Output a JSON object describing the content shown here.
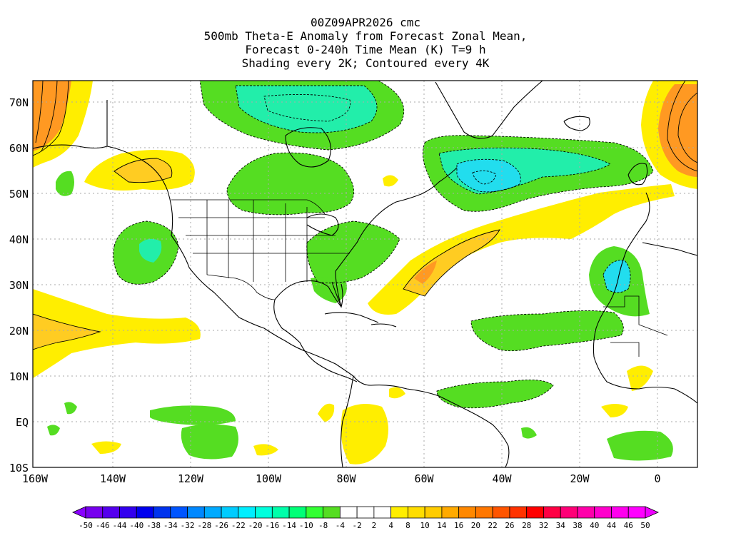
{
  "title": {
    "line1": "00Z09APR2026 cmc",
    "line2": "500mb Theta-E Anomaly from Forecast Zonal Mean,",
    "line3": "Forecast 0-240h Time Mean (K) T=9 h",
    "line4": "Shading every 2K; Contoured every 4K"
  },
  "map": {
    "lon_labels": [
      "160W",
      "140W",
      "120W",
      "100W",
      "80W",
      "60W",
      "40W",
      "20W",
      "0"
    ],
    "lat_labels": [
      "70N",
      "60N",
      "50N",
      "40N",
      "30N",
      "20N",
      "10N",
      "EQ",
      "10S"
    ],
    "colors": {
      "green": "#55dd22",
      "teal": "#22eeaa",
      "cyan": "#22ddee",
      "yellow": "#ffee00",
      "light_orange": "#ffcc22",
      "orange": "#ff9922",
      "coast": "#000000",
      "grid": "#aaaaaa"
    }
  },
  "colorbar": {
    "labels": [
      "-50",
      "-46",
      "-44",
      "-40",
      "-38",
      "-34",
      "-32",
      "-28",
      "-26",
      "-22",
      "-20",
      "-16",
      "-14",
      "-10",
      "-8",
      "-4",
      "-2",
      "2",
      "4",
      "8",
      "10",
      "14",
      "16",
      "20",
      "22",
      "26",
      "28",
      "32",
      "34",
      "38",
      "40",
      "44",
      "46",
      "50"
    ],
    "colors": [
      "#8800ff",
      "#7700ee",
      "#5500ee",
      "#3300ee",
      "#0000ee",
      "#0033ee",
      "#0055ff",
      "#0088ff",
      "#00aaff",
      "#00ccff",
      "#00eeff",
      "#00ffdd",
      "#00ffaa",
      "#00ff77",
      "#33ff33",
      "#55dd22",
      "#ffffff",
      "#ffffff",
      "#ffffff",
      "#ffee00",
      "#ffdd00",
      "#ffcc00",
      "#ffaa00",
      "#ff8800",
      "#ff7700",
      "#ff5500",
      "#ff3300",
      "#ff0000",
      "#ff0044",
      "#ff0077",
      "#ff00aa",
      "#ff00cc",
      "#ff00ee",
      "#ff00ff",
      "#ee00ff"
    ]
  }
}
